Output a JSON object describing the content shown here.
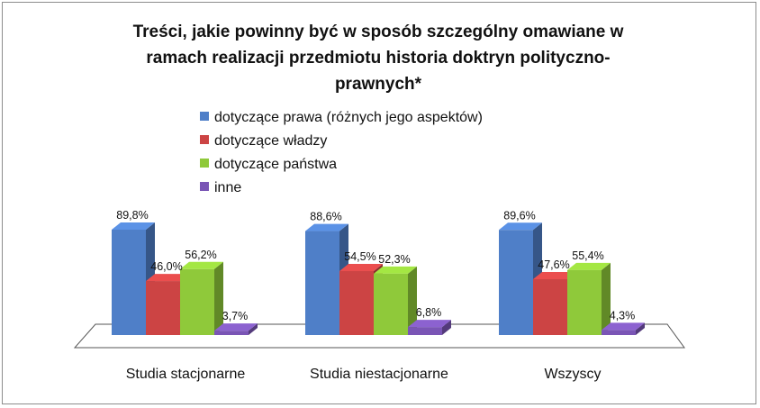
{
  "chart_data": {
    "type": "bar",
    "title_lines": [
      "Treści, jakie powinny być w sposób szczególny omawiane w",
      "ramach realizacji przedmiotu historia doktryn polityczno-",
      "prawnych*"
    ],
    "categories": [
      "Studia stacjonarne",
      "Studia niestacjonarne",
      "Wszyscy"
    ],
    "series": [
      {
        "name": "dotyczące prawa (różnych jego aspektów)",
        "color": "#4f7fc8",
        "values": [
          89.8,
          88.6,
          89.6
        ],
        "labels": [
          "89,8%",
          "88,6%",
          "89,6%"
        ]
      },
      {
        "name": "dotyczące władzy",
        "color": "#cc4444",
        "values": [
          46.0,
          54.5,
          47.6
        ],
        "labels": [
          "46,0%",
          "54,5%",
          "47,6%"
        ]
      },
      {
        "name": "dotyczące państwa",
        "color": "#8fc93a",
        "values": [
          56.2,
          52.3,
          55.4
        ],
        "labels": [
          "56,2%",
          "52,3%",
          "55,4%"
        ]
      },
      {
        "name": "inne",
        "color": "#7a55b5",
        "values": [
          3.7,
          6.8,
          4.3
        ],
        "labels": [
          "3,7%",
          "6,8%",
          "4,3%"
        ]
      }
    ],
    "ylim": [
      0,
      100
    ],
    "grid": false,
    "legend_position": "top",
    "style": "3d-clustered-column"
  }
}
